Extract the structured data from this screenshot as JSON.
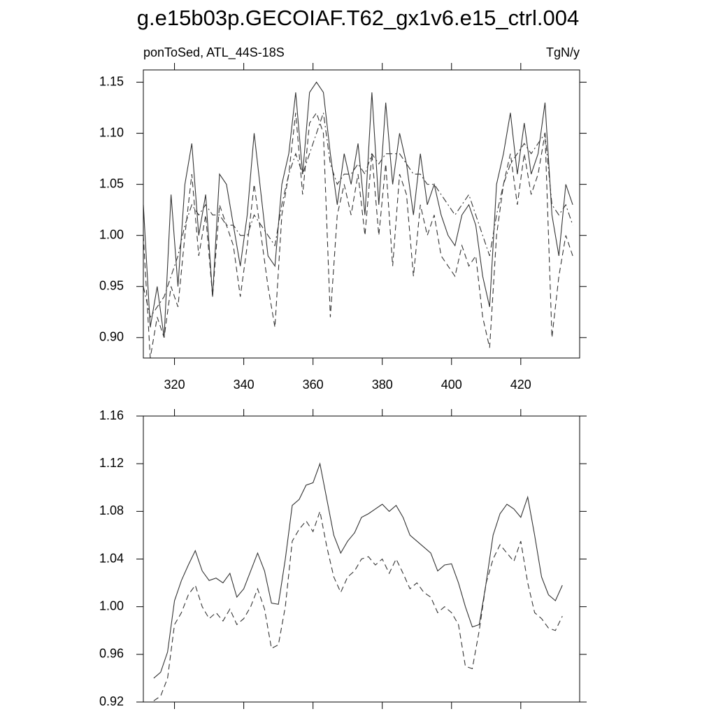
{
  "title": "g.e15b03p.GECOIAF.T62_gx1v6.e15_ctrl.004",
  "chart_data": [
    {
      "type": "line",
      "left_label": "ponToSed, ATL_44S-18S",
      "right_label": "TgN/y",
      "x": [
        311,
        313,
        315,
        317,
        319,
        321,
        323,
        325,
        327,
        329,
        331,
        333,
        335,
        337,
        339,
        341,
        343,
        345,
        347,
        349,
        351,
        353,
        355,
        357,
        359,
        361,
        363,
        365,
        367,
        369,
        371,
        373,
        375,
        377,
        379,
        381,
        383,
        385,
        387,
        389,
        391,
        393,
        395,
        397,
        399,
        401,
        403,
        405,
        407,
        409,
        411,
        413,
        415,
        417,
        419,
        421,
        423,
        425,
        427,
        429,
        431,
        433,
        435
      ],
      "series": [
        {
          "color": "#333333",
          "dash": "solid",
          "values": [
            1.03,
            0.91,
            0.95,
            0.9,
            1.04,
            0.95,
            1.05,
            1.09,
            1.0,
            1.04,
            0.94,
            1.06,
            1.05,
            1.01,
            0.97,
            1.02,
            1.1,
            1.04,
            0.98,
            0.97,
            1.05,
            1.08,
            1.14,
            1.06,
            1.14,
            1.15,
            1.14,
            1.08,
            1.03,
            1.08,
            1.05,
            1.09,
            1.02,
            1.14,
            1.03,
            1.13,
            1.05,
            1.1,
            1.07,
            1.02,
            1.08,
            1.03,
            1.05,
            1.02,
            1.0,
            0.99,
            1.02,
            1.03,
            1.01,
            0.96,
            0.93,
            1.05,
            1.08,
            1.12,
            1.06,
            1.11,
            1.06,
            1.08,
            1.13,
            1.02,
            0.98,
            1.05,
            1.03
          ]
        },
        {
          "color": "#333333",
          "dash": "dashed",
          "values": [
            1.0,
            0.88,
            0.92,
            0.9,
            0.95,
            0.93,
            1.0,
            1.06,
            0.98,
            1.02,
            0.94,
            1.03,
            1.01,
            0.99,
            0.94,
            0.99,
            1.05,
            1.0,
            0.95,
            0.91,
            1.02,
            1.06,
            1.12,
            1.04,
            1.11,
            1.12,
            1.1,
            0.92,
            1.02,
            1.05,
            1.02,
            1.06,
            1.0,
            1.08,
            1.0,
            1.07,
            0.97,
            1.06,
            1.04,
            0.96,
            1.03,
            1.0,
            1.02,
            0.98,
            0.97,
            0.96,
            0.99,
            0.97,
            0.98,
            0.92,
            0.89,
            1.0,
            1.05,
            1.08,
            1.03,
            1.08,
            1.04,
            1.06,
            1.1,
            0.9,
            0.96,
            1.0,
            0.98
          ]
        },
        {
          "color": "#333333",
          "dash": "dashdot",
          "values": [
            0.95,
            0.92,
            0.93,
            0.94,
            0.96,
            0.98,
            1.01,
            1.03,
            1.02,
            1.03,
            1.02,
            1.02,
            1.01,
            1.01,
            1.0,
            1.0,
            1.02,
            1.01,
            1.0,
            0.99,
            1.03,
            1.06,
            1.08,
            1.06,
            1.08,
            1.1,
            1.12,
            1.07,
            1.05,
            1.06,
            1.06,
            1.07,
            1.06,
            1.08,
            1.07,
            1.08,
            1.08,
            1.08,
            1.07,
            1.06,
            1.06,
            1.05,
            1.05,
            1.04,
            1.03,
            1.02,
            1.03,
            1.04,
            1.02,
            1.0,
            0.98,
            1.02,
            1.05,
            1.07,
            1.08,
            1.09,
            1.08,
            1.09,
            1.1,
            1.03,
            1.02,
            1.03,
            1.01
          ]
        }
      ],
      "xlim": [
        311,
        437
      ],
      "xticks": [
        320,
        340,
        360,
        380,
        400,
        420
      ],
      "xtick_labels": true,
      "ylim": [
        0.88,
        1.162
      ],
      "yticks": [
        {
          "value": 0.9,
          "label": "0.90"
        },
        {
          "value": 0.95,
          "label": "0.95"
        },
        {
          "value": 1.0,
          "label": "1.00"
        },
        {
          "value": 1.05,
          "label": "1.05"
        },
        {
          "value": 1.1,
          "label": "1.10"
        },
        {
          "value": 1.15,
          "label": "1.15"
        }
      ]
    },
    {
      "type": "line",
      "x": [
        314,
        316,
        318,
        320,
        322,
        324,
        326,
        328,
        330,
        332,
        334,
        336,
        338,
        340,
        342,
        344,
        346,
        348,
        350,
        352,
        354,
        356,
        358,
        360,
        362,
        364,
        366,
        368,
        370,
        372,
        374,
        376,
        378,
        380,
        382,
        384,
        386,
        388,
        390,
        392,
        394,
        396,
        398,
        400,
        402,
        404,
        406,
        408,
        410,
        412,
        414,
        416,
        418,
        420,
        422,
        424,
        426,
        428,
        430,
        432
      ],
      "series": [
        {
          "color": "#333333",
          "dash": "solid",
          "values": [
            0.94,
            0.945,
            0.962,
            1.005,
            1.022,
            1.035,
            1.047,
            1.03,
            1.022,
            1.024,
            1.02,
            1.028,
            1.008,
            1.015,
            1.03,
            1.045,
            1.03,
            1.003,
            1.002,
            1.04,
            1.085,
            1.09,
            1.102,
            1.104,
            1.12,
            1.09,
            1.06,
            1.045,
            1.055,
            1.062,
            1.075,
            1.078,
            1.082,
            1.086,
            1.08,
            1.085,
            1.075,
            1.06,
            1.055,
            1.05,
            1.045,
            1.03,
            1.035,
            1.036,
            1.02,
            1.0,
            0.983,
            0.985,
            1.02,
            1.06,
            1.078,
            1.086,
            1.082,
            1.075,
            1.092,
            1.06,
            1.025,
            1.01,
            1.005,
            1.018
          ]
        },
        {
          "color": "#333333",
          "dash": "dashed",
          "values": [
            0.921,
            0.925,
            0.94,
            0.985,
            0.995,
            1.01,
            1.018,
            1.0,
            0.99,
            0.995,
            0.988,
            0.998,
            0.985,
            0.99,
            1.0,
            1.015,
            0.998,
            0.965,
            0.968,
            1.0,
            1.055,
            1.065,
            1.072,
            1.063,
            1.08,
            1.05,
            1.025,
            1.012,
            1.025,
            1.03,
            1.04,
            1.042,
            1.035,
            1.04,
            1.028,
            1.04,
            1.028,
            1.015,
            1.02,
            1.012,
            1.008,
            0.995,
            1.0,
            0.995,
            0.985,
            0.95,
            0.948,
            0.98,
            1.02,
            1.04,
            1.052,
            1.045,
            1.038,
            1.055,
            1.02,
            0.995,
            0.99,
            0.982,
            0.98,
            0.992
          ]
        }
      ],
      "xlim": [
        311,
        437
      ],
      "xticks": [
        320,
        340,
        360,
        380,
        400,
        420
      ],
      "xtick_labels": false,
      "ylim": [
        0.92,
        1.16
      ],
      "yticks": [
        {
          "value": 0.92,
          "label": "0.92"
        },
        {
          "value": 0.96,
          "label": "0.96"
        },
        {
          "value": 1.0,
          "label": "1.00"
        },
        {
          "value": 1.04,
          "label": "1.04"
        },
        {
          "value": 1.08,
          "label": "1.08"
        },
        {
          "value": 1.12,
          "label": "1.12"
        },
        {
          "value": 1.16,
          "label": "1.16"
        }
      ]
    }
  ]
}
